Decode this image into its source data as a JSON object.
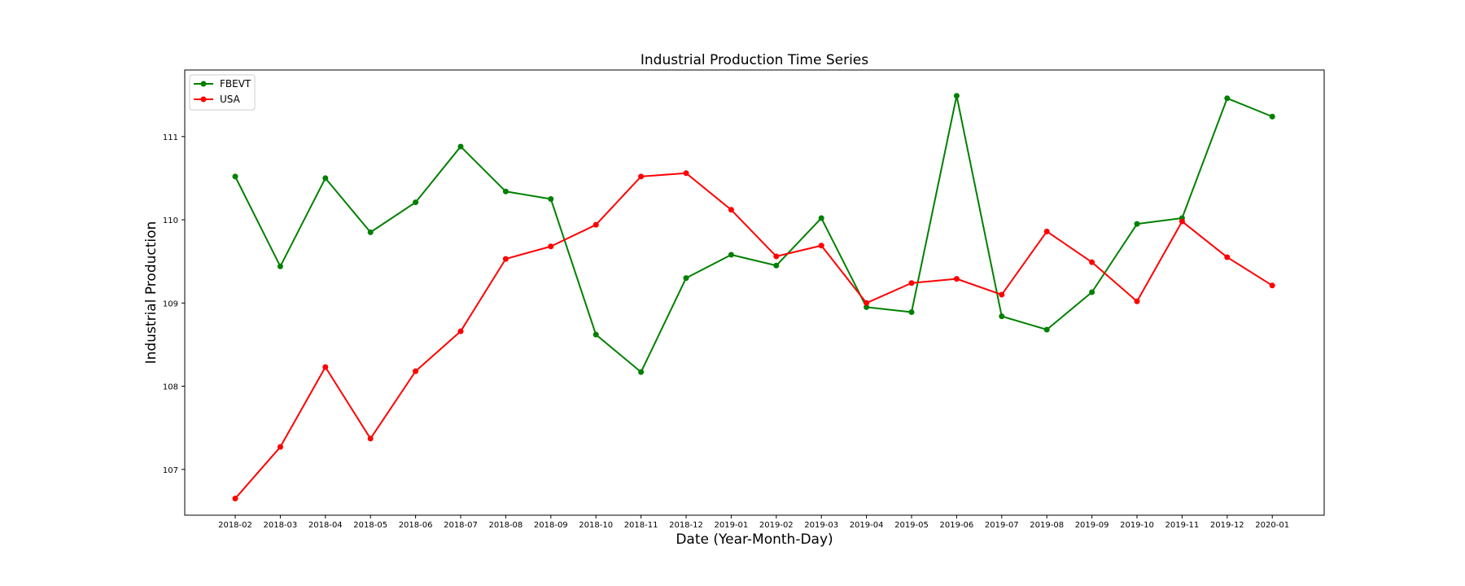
{
  "chart_data": {
    "type": "line",
    "title": "Industrial Production Time Series",
    "xlabel": "Date (Year-Month-Day)",
    "ylabel": "Industrial Production",
    "categories": [
      "2018-02",
      "2018-03",
      "2018-04",
      "2018-05",
      "2018-06",
      "2018-07",
      "2018-08",
      "2018-09",
      "2018-10",
      "2018-11",
      "2018-12",
      "2019-01",
      "2019-02",
      "2019-03",
      "2019-04",
      "2019-05",
      "2019-06",
      "2019-07",
      "2019-08",
      "2019-09",
      "2019-10",
      "2019-11",
      "2019-12",
      "2020-01"
    ],
    "yticks": [
      107,
      108,
      109,
      110,
      111
    ],
    "ylim": [
      106.45,
      111.8
    ],
    "grid": false,
    "legend_position": "top-left",
    "marker": "circle",
    "series": [
      {
        "name": "FBEVT",
        "color": "#008000",
        "values": [
          110.52,
          109.44,
          110.5,
          109.85,
          110.21,
          110.88,
          110.34,
          110.25,
          108.62,
          108.17,
          109.3,
          109.58,
          109.45,
          110.02,
          108.95,
          108.89,
          111.49,
          108.84,
          108.68,
          109.13,
          109.95,
          110.02,
          111.46,
          111.24
        ]
      },
      {
        "name": "USA",
        "color": "#ff0000",
        "values": [
          106.65,
          107.27,
          108.23,
          107.37,
          108.18,
          108.66,
          109.53,
          109.68,
          109.94,
          110.52,
          110.56,
          110.12,
          109.56,
          109.69,
          109.0,
          109.24,
          109.29,
          109.1,
          109.86,
          109.49,
          109.02,
          109.98,
          109.55,
          109.21
        ]
      }
    ]
  }
}
